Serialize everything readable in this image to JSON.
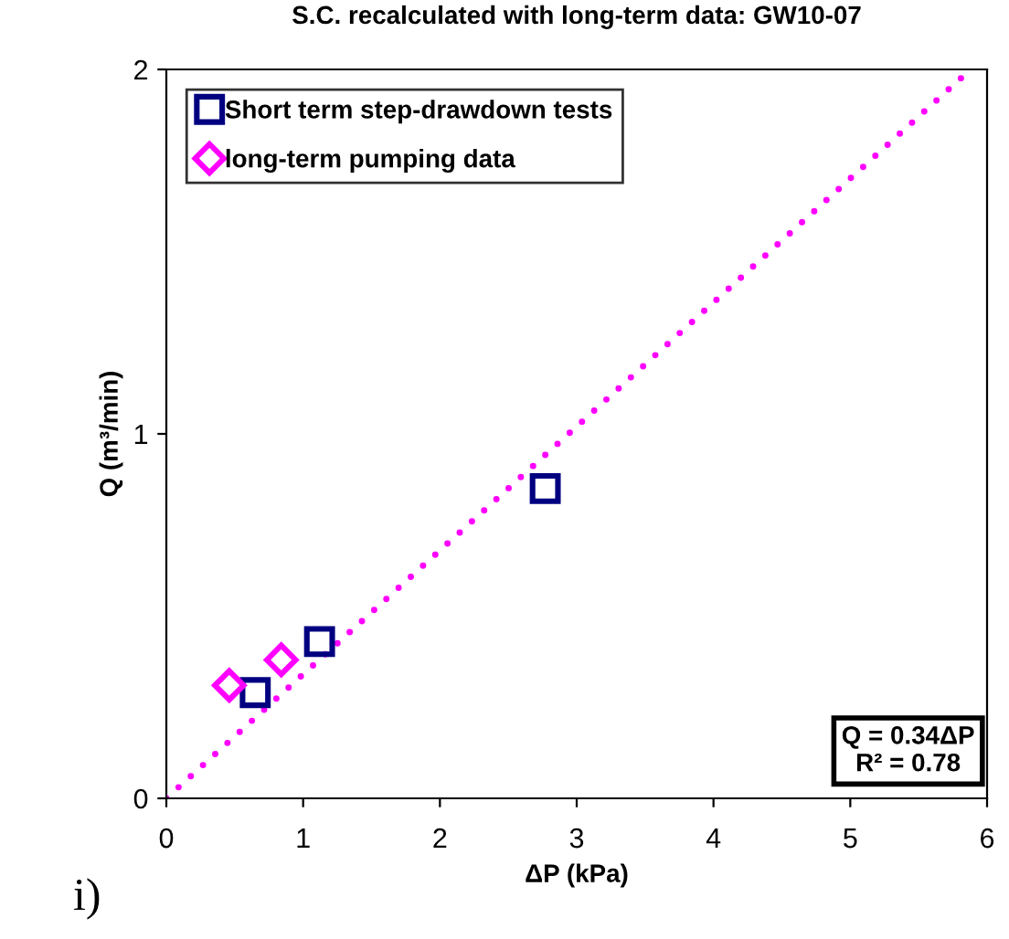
{
  "chart_data": {
    "type": "scatter",
    "title": "S.C. recalculated with long-term data: GW10-07",
    "xlabel": "ΔP (kPa)",
    "ylabel": "Q (m³/min)",
    "series": [
      {
        "name": "Short term step-drawdown tests",
        "marker": "square",
        "color": "#000080",
        "x": [
          0.65,
          1.12,
          2.77
        ],
        "values": [
          0.29,
          0.43,
          0.85
        ]
      },
      {
        "name": "long-term pumping data",
        "marker": "diamond",
        "color": "#ff00ff",
        "x": [
          0.46,
          0.84
        ],
        "values": [
          0.31,
          0.38
        ]
      },
      {
        "type": "line",
        "line_style": "dotted",
        "marker": "none",
        "color": "#ff00ff",
        "x": [
          0,
          5.88
        ],
        "values": [
          0,
          2.0
        ]
      }
    ],
    "xlim": [
      0,
      6
    ],
    "ylim": [
      0,
      2
    ],
    "xticks": [
      0,
      1,
      2,
      3,
      4,
      5,
      6
    ],
    "yticks": [
      0,
      1,
      2
    ],
    "grid": false,
    "legend": "top left",
    "annotations": [
      "Q = 0.34ΔP\nR² = 0.78",
      "i)"
    ]
  }
}
